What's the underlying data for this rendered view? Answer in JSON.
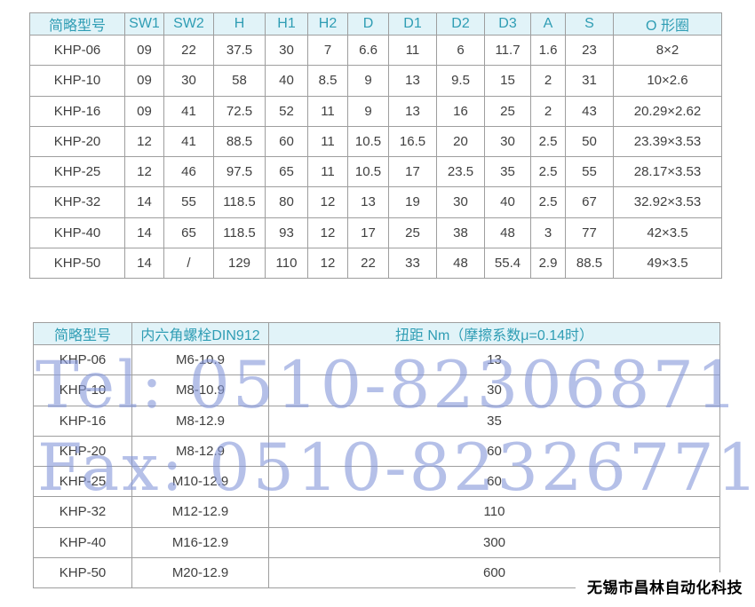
{
  "spec_table": {
    "headers": [
      "简略型号",
      "SW1",
      "SW2",
      "H",
      "H1",
      "H2",
      "D",
      "D1",
      "D2",
      "D3",
      "A",
      "S",
      "O 形圈"
    ],
    "rows": [
      [
        "KHP-06",
        "09",
        "22",
        "37.5",
        "30",
        "7",
        "6.6",
        "11",
        "6",
        "11.7",
        "1.6",
        "23",
        "8×2"
      ],
      [
        "KHP-10",
        "09",
        "30",
        "58",
        "40",
        "8.5",
        "9",
        "13",
        "9.5",
        "15",
        "2",
        "31",
        "10×2.6"
      ],
      [
        "KHP-16",
        "09",
        "41",
        "72.5",
        "52",
        "11",
        "9",
        "13",
        "16",
        "25",
        "2",
        "43",
        "20.29×2.62"
      ],
      [
        "KHP-20",
        "12",
        "41",
        "88.5",
        "60",
        "11",
        "10.5",
        "16.5",
        "20",
        "30",
        "2.5",
        "50",
        "23.39×3.53"
      ],
      [
        "KHP-25",
        "12",
        "46",
        "97.5",
        "65",
        "11",
        "10.5",
        "17",
        "23.5",
        "35",
        "2.5",
        "55",
        "28.17×3.53"
      ],
      [
        "KHP-32",
        "14",
        "55",
        "118.5",
        "80",
        "12",
        "13",
        "19",
        "30",
        "40",
        "2.5",
        "67",
        "32.92×3.53"
      ],
      [
        "KHP-40",
        "14",
        "65",
        "118.5",
        "93",
        "12",
        "17",
        "25",
        "38",
        "48",
        "3",
        "77",
        "42×3.5"
      ],
      [
        "KHP-50",
        "14",
        "/",
        "129",
        "110",
        "12",
        "22",
        "33",
        "48",
        "55.4",
        "2.9",
        "88.5",
        "49×3.5"
      ]
    ]
  },
  "bolt_table": {
    "headers": [
      "简略型号",
      "内六角螺栓DIN912",
      "扭距 Nm（摩擦系数μ=0.14时）"
    ],
    "rows": [
      [
        "KHP-06",
        "M6-10.9",
        "13"
      ],
      [
        "KHP-10",
        "M8-10.9",
        "30"
      ],
      [
        "KHP-16",
        "M8-12.9",
        "35"
      ],
      [
        "KHP-20",
        "M8-12.9",
        "60"
      ],
      [
        "KHP-25",
        "M10-12.9",
        "60"
      ],
      [
        "KHP-32",
        "M12-12.9",
        "110"
      ],
      [
        "KHP-40",
        "M16-12.9",
        "300"
      ],
      [
        "KHP-50",
        "M20-12.9",
        "600"
      ]
    ]
  },
  "watermarks": {
    "tel": "Tel: 0510-82306871",
    "fax": "Fax: 0510-82326771"
  },
  "footer": {
    "company": "无锡市昌林自动化科技"
  },
  "colors": {
    "header_bg": "#e1f3f8",
    "header_text": "#2f9db4",
    "border": "#9e9e9e",
    "body_text": "#404040",
    "company_text": "#000000"
  }
}
